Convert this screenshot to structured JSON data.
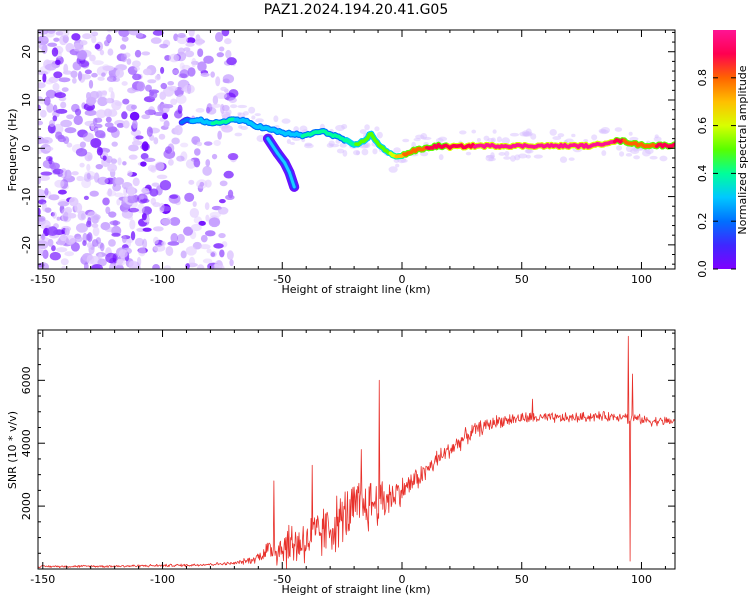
{
  "title": "PAZ1.2024.194.20.41.G05",
  "colors": {
    "snr_line": "#e8302a",
    "track_core": "#e8303a",
    "colormap": [
      "#7f00ff",
      "#3f27ff",
      "#0070ff",
      "#00c8ff",
      "#00ff9a",
      "#58ff00",
      "#d8ff00",
      "#ffbf00",
      "#ff6400",
      "#ff0050",
      "#ff1493"
    ]
  },
  "chart_data": [
    {
      "type": "heatmap",
      "xlabel": "Height of straight line (km)",
      "ylabel": "Frequency (Hz)",
      "xlim": [
        -152,
        114
      ],
      "ylim": [
        -25,
        24.5
      ],
      "xticks": [
        -150,
        -100,
        -50,
        0,
        50,
        100
      ],
      "yticks": [
        -20,
        -10,
        0,
        10,
        20
      ],
      "colorbar": {
        "label": "Normalized spectral amplitude",
        "range": [
          0,
          1
        ],
        "ticks": [
          0.0,
          0.2,
          0.4,
          0.6,
          0.8
        ]
      },
      "ridge": {
        "x": [
          -92,
          -85,
          -80,
          -75,
          -70,
          -65,
          -60,
          -56,
          -52,
          -48,
          -45,
          -42,
          -38,
          -34,
          -30,
          -25,
          -20,
          -16,
          -13,
          -10,
          -7,
          -4,
          0,
          5,
          10,
          15,
          20,
          30,
          40,
          50,
          60,
          70,
          80,
          88,
          92,
          95,
          98,
          102,
          106,
          110,
          114
        ],
        "y": [
          5.5,
          6,
          5,
          5.5,
          6,
          5.5,
          4.5,
          4,
          3.5,
          3,
          3,
          2.5,
          3,
          3.5,
          3,
          2,
          0.5,
          1.5,
          3,
          1,
          -0.5,
          -1.5,
          -1.5,
          -0.5,
          0,
          0.5,
          0.3,
          0.5,
          0.5,
          0.5,
          0.5,
          0.5,
          0.5,
          1.5,
          1.5,
          1.2,
          0.8,
          0.6,
          0.6,
          0.6,
          0.6
        ],
        "amplitude": [
          0.2,
          0.3,
          0.35,
          0.35,
          0.35,
          0.3,
          0.3,
          0.3,
          0.3,
          0.3,
          0.3,
          0.35,
          0.4,
          0.4,
          0.4,
          0.4,
          0.45,
          0.45,
          0.45,
          0.45,
          0.5,
          0.6,
          0.75,
          0.8,
          0.85,
          0.9,
          0.92,
          0.95,
          0.97,
          0.97,
          0.97,
          0.98,
          0.98,
          0.95,
          0.85,
          0.75,
          0.75,
          0.8,
          0.85,
          0.85,
          0.85
        ]
      },
      "branch": {
        "x": [
          -56,
          -52,
          -49,
          -47,
          -45
        ],
        "y": [
          2,
          -1,
          -3,
          -5,
          -8
        ]
      },
      "noise_region": {
        "x": [
          -152,
          -70
        ],
        "y": [
          -25,
          24.5
        ]
      }
    },
    {
      "type": "line",
      "xlabel": "Height of straight line (km)",
      "ylabel": "SNR (10 * v/v)",
      "xlim": [
        -152,
        114
      ],
      "ylim": [
        0,
        7600
      ],
      "xticks": [
        -150,
        -100,
        -50,
        0,
        50,
        100
      ],
      "yticks": [
        2000,
        4000,
        6000
      ],
      "series": [
        {
          "envelope_x": [
            -152,
            -120,
            -90,
            -70,
            -62,
            -56,
            -50,
            -40,
            -30,
            -20,
            -12,
            -5,
            0,
            5,
            10,
            15,
            20,
            25,
            30,
            40,
            50,
            60,
            70,
            80,
            90,
            93,
            95,
            96,
            97,
            100,
            105,
            114
          ],
          "envelope_y": [
            80,
            90,
            120,
            180,
            300,
            600,
            700,
            900,
            1300,
            1900,
            2100,
            2300,
            2500,
            2800,
            3100,
            3500,
            3800,
            4100,
            4400,
            4700,
            4800,
            4800,
            4800,
            4850,
            4850,
            4900,
            4700,
            4800,
            4800,
            4750,
            4700,
            4700
          ],
          "noise_amp_x": [
            -152,
            -70,
            -60,
            -50,
            -35,
            -20,
            -10,
            0,
            10,
            20,
            30,
            40,
            60,
            90,
            114
          ],
          "noise_amp_y": [
            40,
            60,
            180,
            900,
            1000,
            1100,
            1000,
            500,
            400,
            350,
            300,
            250,
            200,
            180,
            180
          ],
          "spikes": [
            {
              "x": -53.5,
              "y": 2800
            },
            {
              "x": -37.5,
              "y": 3300
            },
            {
              "x": -17,
              "y": 3800
            },
            {
              "x": -9.5,
              "y": 6000
            },
            {
              "x": 54.5,
              "y": 5400
            },
            {
              "x": 94.5,
              "y": 7400
            },
            {
              "x": 95.2,
              "y": 250
            },
            {
              "x": 96.3,
              "y": 6200
            }
          ]
        }
      ]
    }
  ]
}
